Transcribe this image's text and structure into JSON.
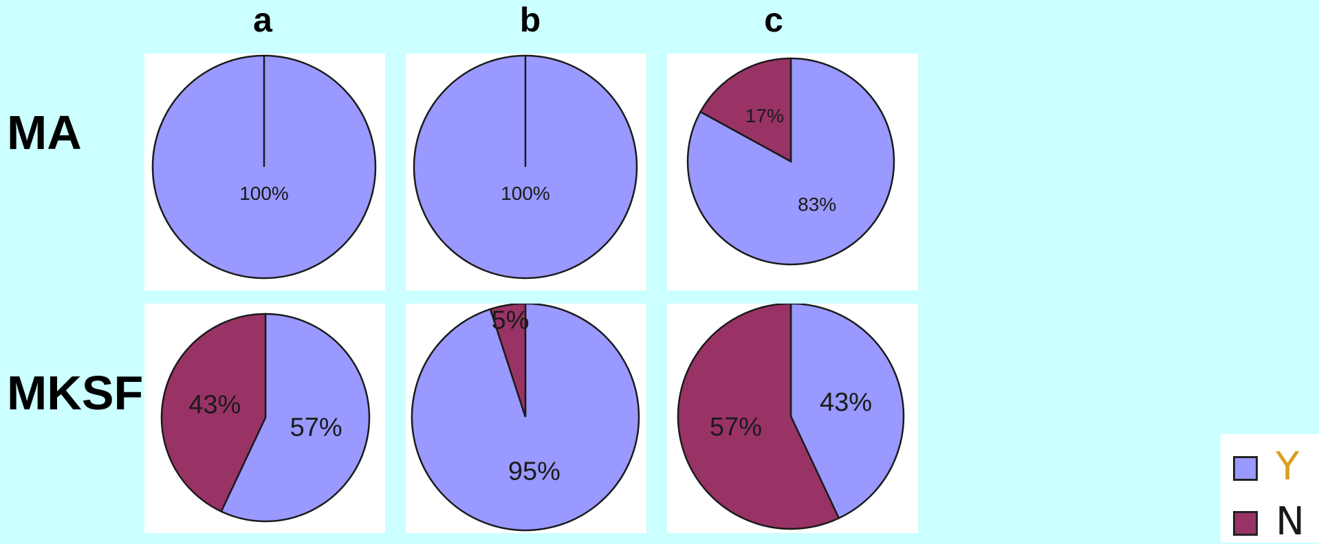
{
  "columns": [
    "a",
    "b",
    "c"
  ],
  "rows": [
    "MA",
    "MKSF"
  ],
  "colors": {
    "Y": "#9999ff",
    "N": "#993366",
    "background": "#ccffff"
  },
  "legend": [
    {
      "key": "Y",
      "label": "Y"
    },
    {
      "key": "N",
      "label": "N"
    }
  ],
  "chart_data": [
    {
      "type": "pie",
      "row": "MA",
      "column": "a",
      "categories": [
        "Y",
        "N"
      ],
      "values": [
        100,
        0
      ],
      "labels": [
        "100%",
        ""
      ]
    },
    {
      "type": "pie",
      "row": "MA",
      "column": "b",
      "categories": [
        "Y",
        "N"
      ],
      "values": [
        100,
        0
      ],
      "labels": [
        "100%",
        ""
      ]
    },
    {
      "type": "pie",
      "row": "MA",
      "column": "c",
      "categories": [
        "Y",
        "N"
      ],
      "values": [
        83,
        17
      ],
      "labels": [
        "83%",
        "17%"
      ]
    },
    {
      "type": "pie",
      "row": "MKSF",
      "column": "a",
      "categories": [
        "Y",
        "N"
      ],
      "values": [
        57,
        43
      ],
      "labels": [
        "57%",
        "43%"
      ]
    },
    {
      "type": "pie",
      "row": "MKSF",
      "column": "b",
      "categories": [
        "Y",
        "N"
      ],
      "values": [
        95,
        5
      ],
      "labels": [
        "95%",
        "5%"
      ]
    },
    {
      "type": "pie",
      "row": "MKSF",
      "column": "c",
      "categories": [
        "Y",
        "N"
      ],
      "values": [
        43,
        57
      ],
      "labels": [
        "43%",
        "57%"
      ]
    }
  ]
}
